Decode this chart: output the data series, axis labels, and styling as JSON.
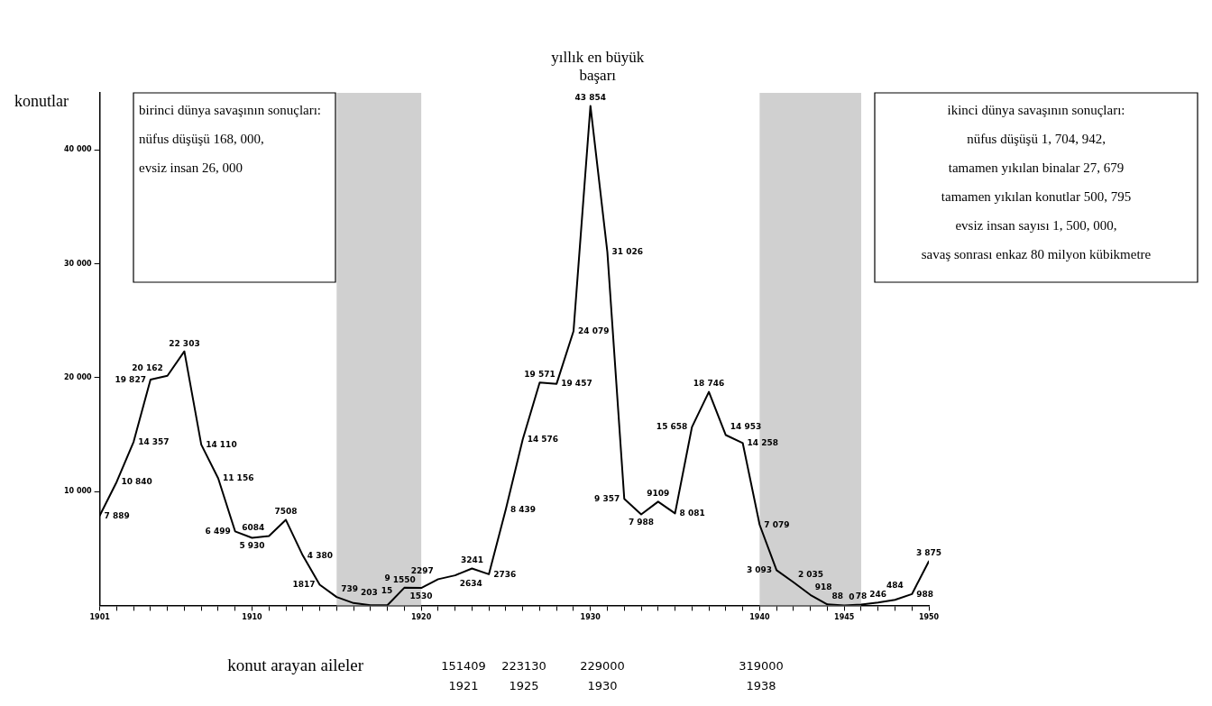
{
  "chart_data": {
    "type": "line",
    "ylabel": "konutlar",
    "x": [
      1901,
      1902,
      1903,
      1904,
      1905,
      1906,
      1907,
      1908,
      1909,
      1910,
      1911,
      1912,
      1913,
      1914,
      1915,
      1916,
      1917,
      1918,
      1919,
      1920,
      1921,
      1922,
      1923,
      1924,
      1925,
      1926,
      1927,
      1928,
      1929,
      1930,
      1931,
      1932,
      1933,
      1934,
      1935,
      1936,
      1937,
      1938,
      1939,
      1940,
      1941,
      1942,
      1943,
      1944,
      1945,
      1946,
      1947,
      1948,
      1949,
      1950
    ],
    "series": [
      {
        "color": "#000000",
        "values": [
          7889,
          10840,
          14357,
          19827,
          20162,
          22303,
          14110,
          11156,
          6499,
          5930,
          6084,
          7508,
          4380,
          1817,
          739,
          203,
          15,
          9,
          1550,
          1530,
          2297,
          2634,
          3241,
          2736,
          8439,
          14576,
          19571,
          19457,
          24079,
          43854,
          31026,
          9357,
          7988,
          9109,
          8081,
          15658,
          18746,
          14953,
          14258,
          7079,
          3093,
          2035,
          918,
          88,
          0,
          78,
          246,
          484,
          988,
          3875
        ],
        "value_labels": [
          "7 889",
          "10 840",
          "14 357",
          "19 827",
          "20 162",
          "22 303",
          "14 110",
          "11 156",
          "6 499",
          "5 930",
          "6084",
          "7508",
          "4 380",
          "1817",
          "739",
          "203",
          "15",
          "9",
          "1550",
          "1530",
          "2297",
          "2634",
          "3241",
          "2736",
          "8 439",
          "14 576",
          "19 571",
          "19 457",
          "24 079",
          "43 854",
          "31 026",
          "9 357",
          "7 988",
          "9109",
          "8 081",
          "15 658",
          "18 746",
          "14 953",
          "14 258",
          "7 079",
          "3 093",
          "2 035",
          "918",
          "88",
          "0",
          "78",
          "246",
          "484",
          "988",
          "3 875"
        ]
      }
    ],
    "xlim": [
      1901,
      1950
    ],
    "xticks": [
      1901,
      {
        "value": 1902,
        "label": null
      },
      {
        "value": 1903,
        "label": null
      },
      {
        "value": 1904,
        "label": null
      },
      {
        "value": 1905,
        "label": null
      },
      {
        "value": 1906,
        "label": null
      },
      {
        "value": 1907,
        "label": null
      },
      {
        "value": 1908,
        "label": null
      },
      {
        "value": 1909,
        "label": null
      },
      1910,
      {
        "value": 1911,
        "label": null
      },
      {
        "value": 1912,
        "label": null
      },
      {
        "value": 1913,
        "label": null
      },
      {
        "value": 1914,
        "label": null
      },
      {
        "value": 1915,
        "label": null
      },
      {
        "value": 1916,
        "label": null
      },
      {
        "value": 1917,
        "label": null
      },
      {
        "value": 1918,
        "label": null
      },
      {
        "value": 1919,
        "label": null
      },
      1920,
      {
        "value": 1921,
        "label": null
      },
      {
        "value": 1922,
        "label": null
      },
      {
        "value": 1923,
        "label": null
      },
      {
        "value": 1924,
        "label": null
      },
      {
        "value": 1925,
        "label": null
      },
      {
        "value": 1926,
        "label": null
      },
      {
        "value": 1927,
        "label": null
      },
      {
        "value": 1928,
        "label": null
      },
      {
        "value": 1929,
        "label": null
      },
      1930,
      {
        "value": 1931,
        "label": null
      },
      {
        "value": 1932,
        "label": null
      },
      {
        "value": 1933,
        "label": null
      },
      {
        "value": 1934,
        "label": null
      },
      {
        "value": 1935,
        "label": null
      },
      {
        "value": 1936,
        "label": null
      },
      {
        "value": 1937,
        "label": null
      },
      {
        "value": 1938,
        "label": null
      },
      {
        "value": 1939,
        "label": null
      },
      1940,
      {
        "value": 1941,
        "label": null
      },
      {
        "value": 1942,
        "label": null
      },
      {
        "value": 1943,
        "label": null
      },
      {
        "value": 1944,
        "label": null
      },
      1945,
      {
        "value": 1946,
        "label": null
      },
      {
        "value": 1947,
        "label": null
      },
      {
        "value": 1948,
        "label": null
      },
      {
        "value": 1949,
        "label": null
      },
      1950
    ],
    "ylim": [
      0,
      45000
    ],
    "yticks": [
      {
        "value": 10000,
        "label": "10 000"
      },
      {
        "value": 20000,
        "label": "20 000"
      },
      {
        "value": 30000,
        "label": "30 000"
      },
      {
        "value": 40000,
        "label": "40 000"
      }
    ],
    "bands": [
      {
        "axis": "x",
        "from": 1915,
        "to": 1920,
        "color": "#d0d0d0"
      },
      {
        "axis": "x",
        "from": 1940,
        "to": 1946,
        "color": "#d0d0d0"
      }
    ],
    "annotations": [
      "birinci dünya savaşının sonuçları:\nnüfus düşüşü 168, 000,\nevsiz insan 26, 000",
      "ikinci dünya savaşının sonuçları:\nnüfus düşüşü 1, 704, 942,\ntamamen yıkılan binalar 27, 679\ntamamen yıkılan konutlar 500, 795\nevsiz insan sayısı 1, 500, 000,\nsavaş sonrası enkaz 80 milyon kübikmetre",
      {
        "text": "yıllık en büyük\nbaşarı",
        "x": 1930,
        "y": 43854
      },
      "konut arayan aileler",
      "151409\n1921",
      "223130\n1925",
      "229000\n1930",
      "319000\n1938"
    ],
    "grid": false,
    "legend": false,
    "marker": "none",
    "line_style": "solid"
  }
}
